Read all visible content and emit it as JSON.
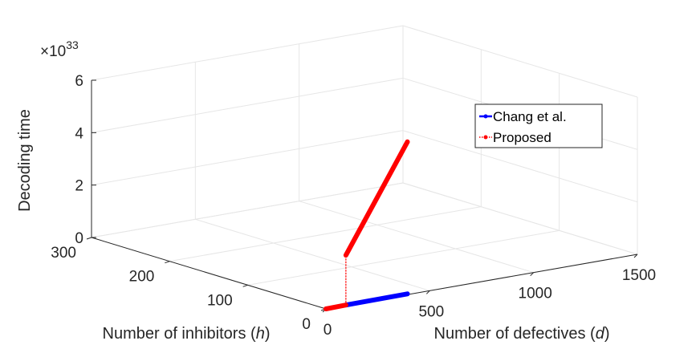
{
  "chart_data": {
    "type": "line3d",
    "axes": {
      "x": {
        "label_prefix": "Number of defectives (",
        "label_var": "d",
        "label_suffix": ")",
        "ticks": [
          "0",
          "500",
          "1000",
          "1500"
        ],
        "range": [
          0,
          1500
        ]
      },
      "y": {
        "label_prefix": "Number of inhibitors (",
        "label_var": "h",
        "label_suffix": ")",
        "ticks": [
          "0",
          "100",
          "200",
          "300"
        ],
        "range": [
          0,
          300
        ]
      },
      "z": {
        "label": "Decoding time",
        "ticks": [
          "0",
          "2",
          "4",
          "6"
        ],
        "range": [
          0,
          6
        ],
        "exponent_base": "×10",
        "exponent_power": "33"
      }
    },
    "grid": true,
    "legend": {
      "placement": "right",
      "entries": [
        {
          "name": "Chang et al.",
          "color": "#0000ff"
        },
        {
          "name": "Proposed",
          "color": "#ff0000"
        }
      ]
    },
    "series": [
      {
        "name": "Chang et al.",
        "color": "#0000ff",
        "points": [
          {
            "d": 100,
            "h": 1,
            "t": 0
          },
          {
            "d": 400,
            "h": 2,
            "t": 0
          }
        ]
      },
      {
        "name": "Proposed",
        "color": "#ff0000",
        "points": [
          {
            "d": 0,
            "h": 0,
            "t": 0
          },
          {
            "d": 100,
            "h": 1,
            "t": 0
          }
        ]
      },
      {
        "name": "Proposed",
        "color": "#ff0000",
        "points": [
          {
            "d": 100,
            "h": 1,
            "t": 1.9
          },
          {
            "d": 400,
            "h": 2,
            "t": 5.8
          }
        ]
      },
      {
        "name": "Proposed",
        "color": "#ff0000",
        "style": "dotted",
        "points": [
          {
            "d": 100,
            "h": 1,
            "t": 0
          },
          {
            "d": 100,
            "h": 1,
            "t": 1.9
          }
        ]
      }
    ]
  }
}
